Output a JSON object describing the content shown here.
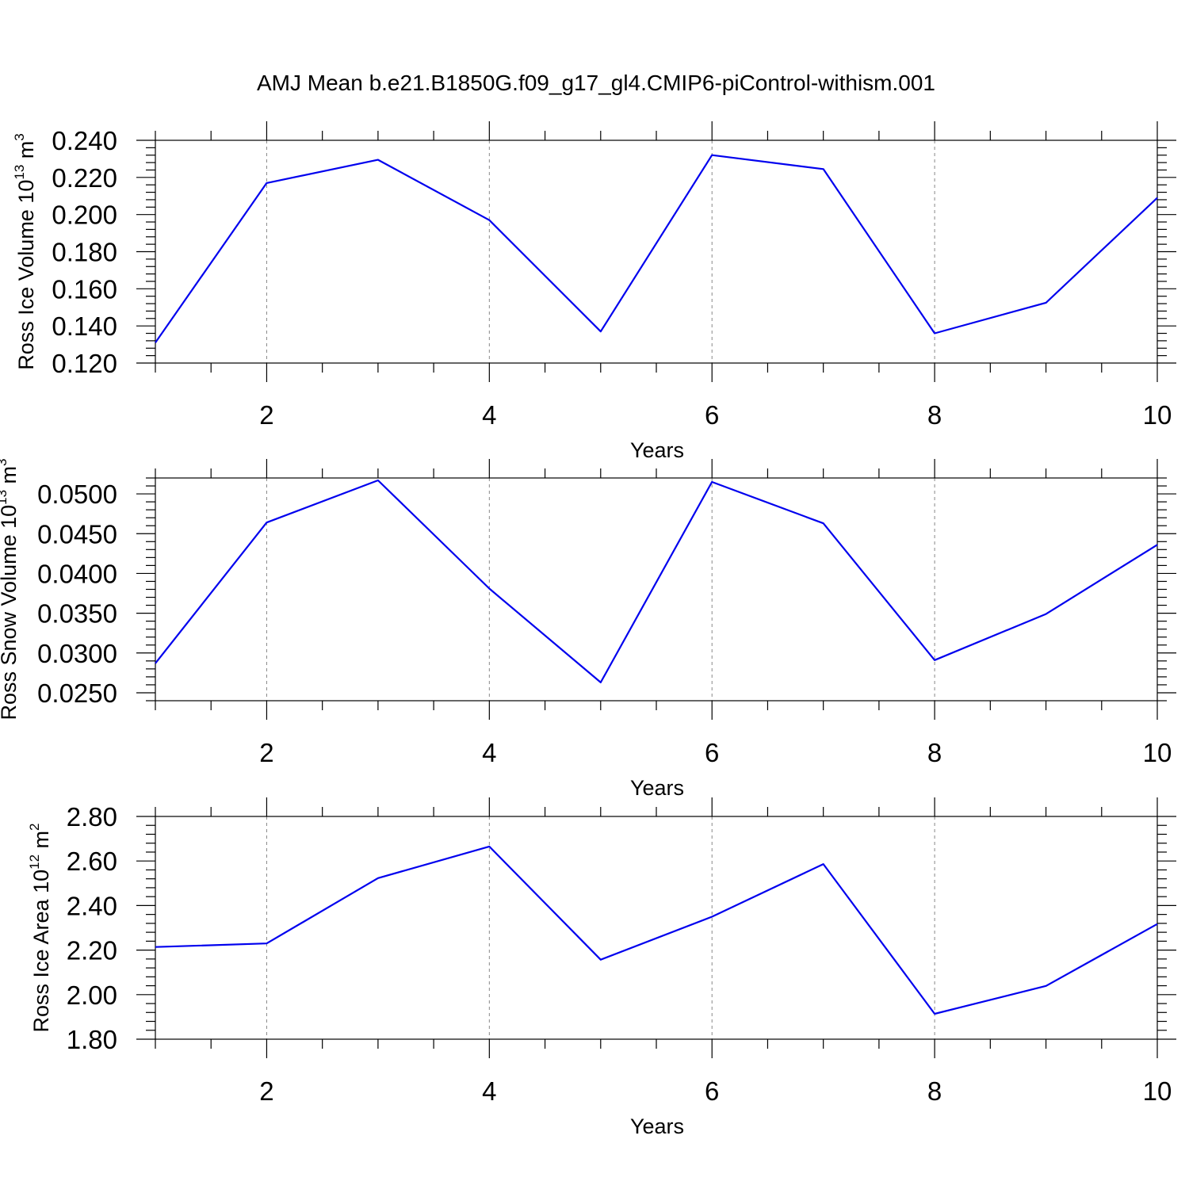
{
  "figure_title": "AMJ Mean b.e21.B1850G.f09_g17_gl4.CMIP6-piControl-withism.001",
  "chart_data": [
    {
      "type": "line",
      "xlabel": "Years",
      "ylabel_prefix": "Ross Ice Volume 10",
      "ylabel_exponent": "13",
      "ylabel_unit": " m",
      "ylabel_unit_exponent": "3",
      "xlim": [
        1,
        10
      ],
      "ylim": [
        0.12,
        0.24
      ],
      "xticks": [
        2,
        4,
        6,
        8,
        10
      ],
      "xtick_labels": [
        "2",
        "4",
        "6",
        "8",
        "10"
      ],
      "yticks": [
        0.12,
        0.14,
        0.16,
        0.18,
        0.2,
        0.22,
        0.24
      ],
      "ytick_labels": [
        "0.120",
        "0.140",
        "0.160",
        "0.180",
        "0.200",
        "0.220",
        "0.240"
      ],
      "grid": "vertical dashed at major x ticks",
      "color": "#0000ee",
      "x": [
        1,
        2,
        3,
        4,
        5,
        6,
        7,
        8,
        9,
        10
      ],
      "values": [
        0.131,
        0.217,
        0.2295,
        0.197,
        0.137,
        0.232,
        0.2245,
        0.136,
        0.1525,
        0.209
      ]
    },
    {
      "type": "line",
      "xlabel": "Years",
      "ylabel_prefix": "Ross Snow Volume 10",
      "ylabel_exponent": "13",
      "ylabel_unit": " m",
      "ylabel_unit_exponent": "3",
      "xlim": [
        1,
        10
      ],
      "ylim": [
        0.024,
        0.052
      ],
      "xticks": [
        2,
        4,
        6,
        8,
        10
      ],
      "xtick_labels": [
        "2",
        "4",
        "6",
        "8",
        "10"
      ],
      "yticks": [
        0.025,
        0.03,
        0.035,
        0.04,
        0.045,
        0.05
      ],
      "ytick_labels": [
        "0.0250",
        "0.0300",
        "0.0350",
        "0.0400",
        "0.0450",
        "0.0500"
      ],
      "grid": "vertical dashed at major x ticks",
      "color": "#0000ee",
      "x": [
        1,
        2,
        3,
        4,
        5,
        6,
        7,
        8,
        9,
        10
      ],
      "values": [
        0.0287,
        0.0464,
        0.0517,
        0.0381,
        0.0263,
        0.0515,
        0.0463,
        0.0291,
        0.0349,
        0.0436
      ]
    },
    {
      "type": "line",
      "xlabel": "Years",
      "ylabel_prefix": "Ross Ice Area 10",
      "ylabel_exponent": "12",
      "ylabel_unit": " m",
      "ylabel_unit_exponent": "2",
      "xlim": [
        1,
        10
      ],
      "ylim": [
        1.8,
        2.8
      ],
      "xticks": [
        2,
        4,
        6,
        8,
        10
      ],
      "xtick_labels": [
        "2",
        "4",
        "6",
        "8",
        "10"
      ],
      "yticks": [
        1.8,
        2.0,
        2.2,
        2.4,
        2.6,
        2.8
      ],
      "ytick_labels": [
        "1.80",
        "2.00",
        "2.20",
        "2.40",
        "2.60",
        "2.80"
      ],
      "grid": "vertical dashed at major x ticks",
      "color": "#0000ee",
      "x": [
        1,
        2,
        3,
        4,
        5,
        6,
        7,
        8,
        9,
        10
      ],
      "values": [
        2.214,
        2.23,
        2.523,
        2.665,
        2.157,
        2.35,
        2.586,
        1.914,
        2.039,
        2.317
      ]
    }
  ]
}
